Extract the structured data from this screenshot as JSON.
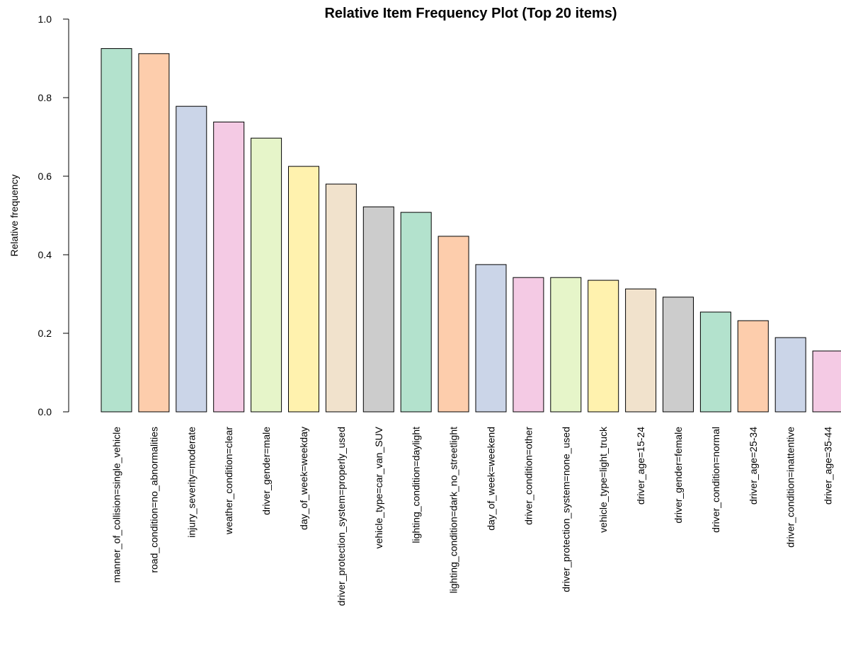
{
  "chart_data": {
    "type": "bar",
    "title": "Relative Item Frequency Plot (Top 20 items)",
    "ylabel": "Relative frequency",
    "xlabel": "",
    "ylim": [
      0,
      1.0
    ],
    "yticks": [
      "0.0",
      "0.2",
      "0.4",
      "0.6",
      "0.8",
      "1.0"
    ],
    "ytick_values": [
      0,
      0.2,
      0.4,
      0.6,
      0.8,
      1.0
    ],
    "grid": false,
    "categories": [
      "manner_of_collision=single_vehicle",
      "road_condition=no_abnormalities",
      "injury_severity=moderate",
      "weather_condition=clear",
      "driver_gender=male",
      "day_of_week=weekday",
      "driver_protection_system=properly_used",
      "vehicle_type=car_van_SUV",
      "lighting_condition=daylight",
      "lighting_condition=dark_no_streetlight",
      "day_of_week=weekend",
      "driver_condition=other",
      "driver_protection_system=none_used",
      "vehicle_type=light_truck",
      "driver_age=15-24",
      "driver_gender=female",
      "driver_condition=normal",
      "driver_age=25-34",
      "driver_condition=inattentive",
      "driver_age=35-44"
    ],
    "values": [
      0.925,
      0.912,
      0.778,
      0.738,
      0.697,
      0.625,
      0.58,
      0.522,
      0.508,
      0.447,
      0.375,
      0.342,
      0.342,
      0.335,
      0.313,
      0.292,
      0.254,
      0.232,
      0.189,
      0.155
    ],
    "colors": [
      "#B3E2CD",
      "#FDCDAC",
      "#CBD5E8",
      "#F4CAE4",
      "#E6F5C9",
      "#FFF2AE",
      "#F1E2CC",
      "#CCCCCC"
    ]
  }
}
